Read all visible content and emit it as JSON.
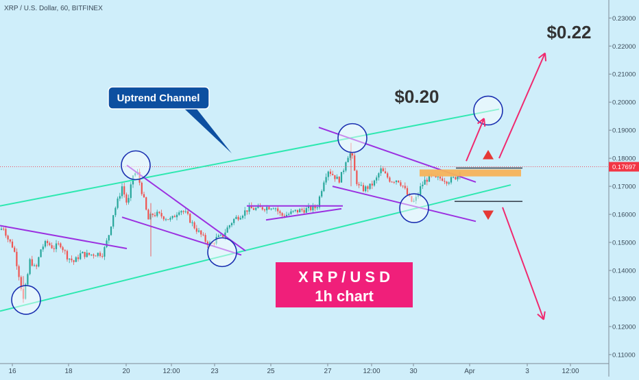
{
  "header": {
    "symbol_line": "XRP / U.S. Dollar, 60, BITFINEX"
  },
  "colors": {
    "background": "#cfeefa",
    "candle_up": "#26a69a",
    "candle_down": "#ef5350",
    "channel": "#2ee8b0",
    "pattern": "#9b30e0",
    "circle": "#1a2fb0",
    "arrow": "#f0286e",
    "price_tag": "#f23645",
    "badge": "#f01f7a",
    "callout": "#0d4fa0",
    "zone": "#f6b25a"
  },
  "annotations": {
    "uptrend_channel": "Uptrend Channel",
    "target_1": "$0.20",
    "target_2": "$0.22",
    "badge_line1": "X R P / U S D",
    "badge_line2": "1h chart"
  },
  "chart_data": {
    "type": "candlestick",
    "title": "XRP / U.S. Dollar, 60, BITFINEX",
    "x_tick_labels": [
      "16",
      "18",
      "20",
      "12:00",
      "23",
      "25",
      "27",
      "12:00",
      "30",
      "Apr",
      "3",
      "12:00"
    ],
    "y_tick_labels": [
      "0.23000",
      "0.22000",
      "0.21000",
      "0.20000",
      "0.19000",
      "0.18000",
      "0.17000",
      "0.16000",
      "0.15000",
      "0.14000",
      "0.13000",
      "0.12000",
      "0.11000"
    ],
    "ylim": [
      0.109,
      0.233
    ],
    "last_price": "0.17697",
    "price_path": [
      [
        0,
        0.1545
      ],
      [
        5,
        0.1555
      ],
      [
        12,
        0.151
      ],
      [
        20,
        0.148
      ],
      [
        28,
        0.138
      ],
      [
        34,
        0.1295
      ],
      [
        38,
        0.135
      ],
      [
        44,
        0.144
      ],
      [
        52,
        0.14
      ],
      [
        60,
        0.148
      ],
      [
        68,
        0.15
      ],
      [
        78,
        0.148
      ],
      [
        88,
        0.1495
      ],
      [
        98,
        0.145
      ],
      [
        108,
        0.143
      ],
      [
        118,
        0.146
      ],
      [
        128,
        0.1455
      ],
      [
        140,
        0.146
      ],
      [
        150,
        0.146
      ],
      [
        158,
        0.152
      ],
      [
        165,
        0.16
      ],
      [
        172,
        0.165
      ],
      [
        178,
        0.17
      ],
      [
        186,
        0.163
      ],
      [
        194,
        0.174
      ],
      [
        200,
        0.175
      ],
      [
        205,
        0.17
      ],
      [
        210,
        0.165
      ],
      [
        216,
        0.158
      ],
      [
        222,
        0.16
      ],
      [
        230,
        0.16
      ],
      [
        240,
        0.159
      ],
      [
        250,
        0.158
      ],
      [
        262,
        0.162
      ],
      [
        272,
        0.16
      ],
      [
        282,
        0.156
      ],
      [
        292,
        0.153
      ],
      [
        300,
        0.1505
      ],
      [
        308,
        0.149
      ],
      [
        316,
        0.1515
      ],
      [
        324,
        0.152
      ],
      [
        330,
        0.1545
      ],
      [
        340,
        0.158
      ],
      [
        352,
        0.16
      ],
      [
        362,
        0.162
      ],
      [
        375,
        0.162
      ],
      [
        388,
        0.1625
      ],
      [
        400,
        0.163
      ],
      [
        410,
        0.1595
      ],
      [
        420,
        0.16
      ],
      [
        430,
        0.161
      ],
      [
        440,
        0.1615
      ],
      [
        452,
        0.162
      ],
      [
        462,
        0.1625
      ],
      [
        468,
        0.168
      ],
      [
        472,
        0.172
      ],
      [
        478,
        0.176
      ],
      [
        486,
        0.174
      ],
      [
        494,
        0.172
      ],
      [
        500,
        0.175
      ],
      [
        505,
        0.18
      ],
      [
        510,
        0.182
      ],
      [
        514,
        0.18
      ],
      [
        518,
        0.174
      ],
      [
        522,
        0.17
      ],
      [
        530,
        0.169
      ],
      [
        540,
        0.17
      ],
      [
        548,
        0.172
      ],
      [
        555,
        0.176
      ],
      [
        562,
        0.174
      ],
      [
        570,
        0.172
      ],
      [
        580,
        0.1725
      ],
      [
        588,
        0.17
      ],
      [
        596,
        0.166
      ],
      [
        602,
        0.164
      ],
      [
        608,
        0.166
      ],
      [
        614,
        0.17
      ],
      [
        620,
        0.172
      ],
      [
        628,
        0.1735
      ],
      [
        636,
        0.1725
      ],
      [
        644,
        0.173
      ],
      [
        652,
        0.172
      ],
      [
        660,
        0.1725
      ],
      [
        668,
        0.174
      ],
      [
        672,
        0.177
      ]
    ],
    "lines": [
      {
        "kind": "channel_upper",
        "points": [
          [
            0,
            0.163
          ],
          [
            728,
            0.1975
          ]
        ]
      },
      {
        "kind": "channel_lower",
        "points": [
          [
            0,
            0.1255
          ],
          [
            745,
            0.1705
          ]
        ]
      },
      {
        "kind": "pattern",
        "points": [
          [
            0,
            0.156
          ],
          [
            185,
            0.1478
          ]
        ]
      },
      {
        "kind": "pattern",
        "points": [
          [
            178,
            0.159
          ],
          [
            352,
            0.1455
          ]
        ]
      },
      {
        "kind": "pattern",
        "points": [
          [
            185,
            0.1775
          ],
          [
            358,
            0.147
          ]
        ]
      },
      {
        "kind": "pattern",
        "points": [
          [
            360,
            0.163
          ],
          [
            500,
            0.163
          ]
        ]
      },
      {
        "kind": "pattern",
        "points": [
          [
            388,
            0.158
          ],
          [
            498,
            0.162
          ]
        ]
      },
      {
        "kind": "pattern",
        "points": [
          [
            465,
            0.191
          ],
          [
            694,
            0.1715
          ]
        ]
      },
      {
        "kind": "pattern",
        "points": [
          [
            485,
            0.17
          ],
          [
            694,
            0.1575
          ]
        ]
      }
    ],
    "zones": [
      {
        "x": [
          612,
          760
        ],
        "y": [
          0.1745,
          0.176
        ],
        "kind": "resistance_band"
      }
    ],
    "levels": [
      {
        "x": [
          665,
          762
        ],
        "y": 0.1765
      },
      {
        "x": [
          663,
          762
        ],
        "y": 0.1646
      }
    ],
    "circles": [
      {
        "x": 38,
        "y": 0.1295
      },
      {
        "x": 198,
        "y": 0.1775
      },
      {
        "x": 324,
        "y": 0.1465
      },
      {
        "x": 514,
        "y": 0.1872
      },
      {
        "x": 604,
        "y": 0.1622
      },
      {
        "x": 712,
        "y": 0.197
      }
    ],
    "arrows": [
      {
        "from": [
          680,
          0.179
        ],
        "to": [
          706,
          0.1942
        ]
      },
      {
        "from": [
          728,
          0.18
        ],
        "to": [
          795,
          0.2175
        ]
      },
      {
        "from": [
          733,
          0.1625
        ],
        "to": [
          793,
          0.1225
        ]
      }
    ],
    "markers": [
      {
        "x": 712,
        "y": 0.181,
        "dir": "up"
      },
      {
        "x": 712,
        "y": 0.16,
        "dir": "down"
      }
    ]
  }
}
